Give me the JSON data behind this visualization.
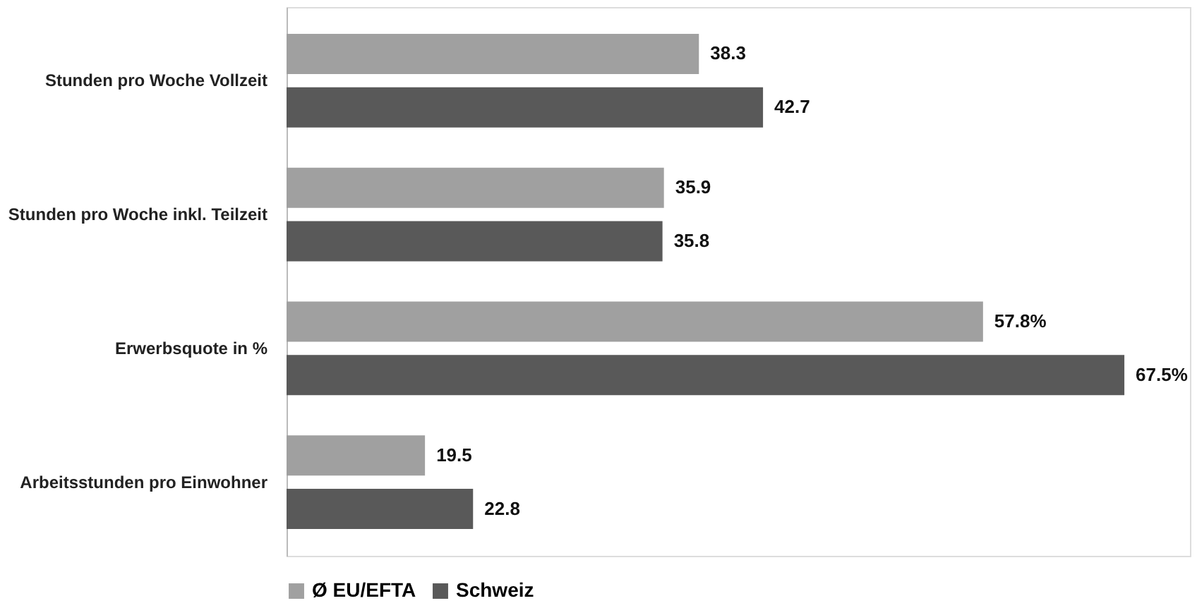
{
  "chart_data": {
    "type": "bar",
    "orientation": "horizontal",
    "categories": [
      "Stunden pro Woche Vollzeit",
      "Stunden pro Woche inkl. Teilzeit",
      "Erwerbsquote in %",
      "Arbeitsstunden pro Einwohner"
    ],
    "series": [
      {
        "name": "Ø EU/EFTA",
        "color": "#a0a0a0",
        "values": [
          38.3,
          35.9,
          57.8,
          19.5
        ],
        "value_labels": [
          "38.3",
          "35.9",
          "57.8%",
          "19.5"
        ]
      },
      {
        "name": "Schweiz",
        "color": "#595959",
        "values": [
          42.7,
          35.8,
          67.5,
          22.8
        ],
        "value_labels": [
          "42.7",
          "35.8",
          "67.5%",
          "22.8"
        ]
      }
    ],
    "xlim": [
      10,
      72
    ],
    "tick_labels": "y",
    "grid": false,
    "legend": "bottom"
  }
}
